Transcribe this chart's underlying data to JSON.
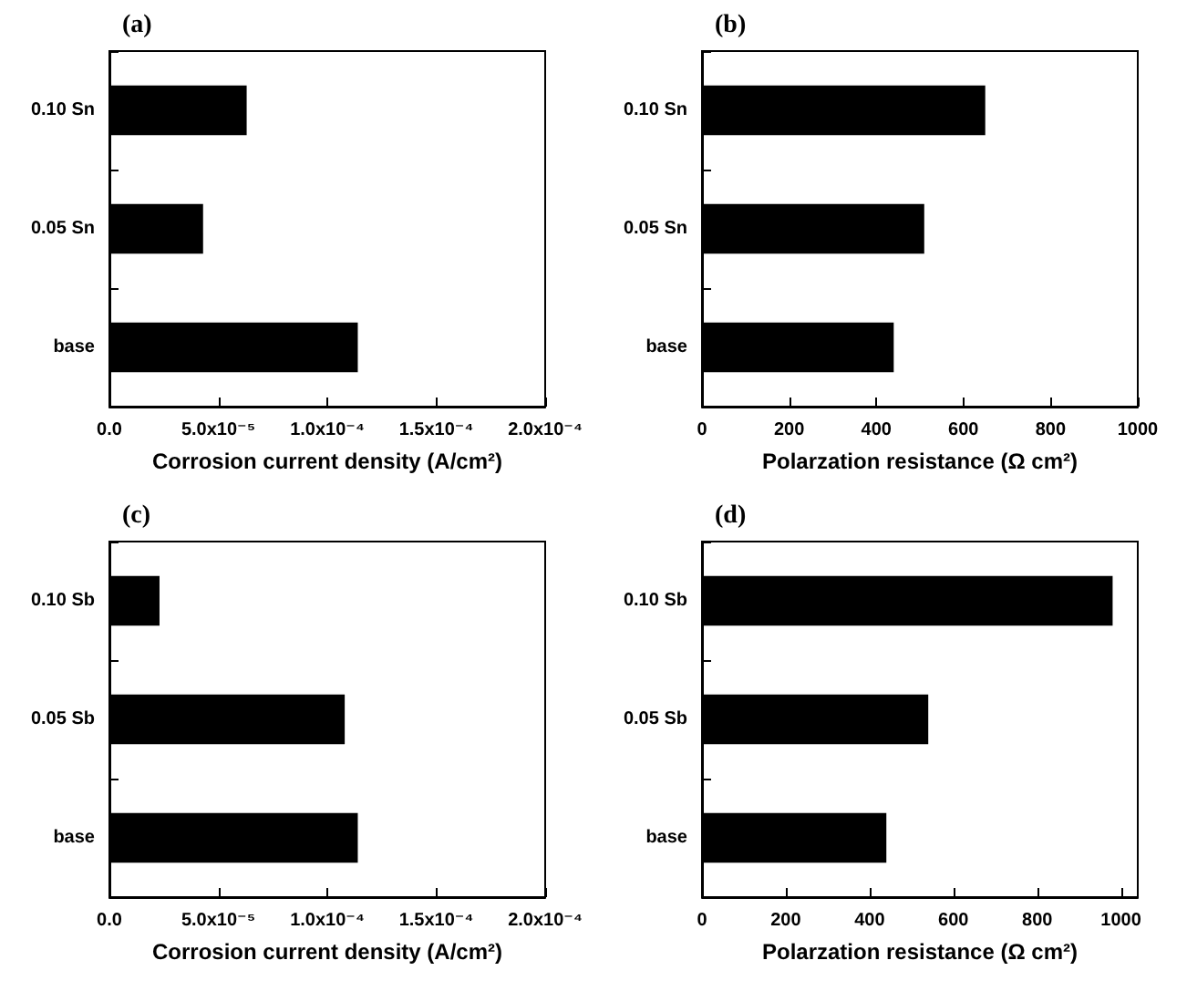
{
  "chart_data": [
    {
      "type": "bar",
      "orientation": "horizontal",
      "title": "(a)",
      "xlabel": "Corrosion current density (A/cm²)",
      "categories": [
        "0.10 Sn",
        "0.05 Sn",
        "base"
      ],
      "values": [
        6.3e-05,
        4.3e-05,
        0.000114
      ],
      "color": "#000000",
      "xlim": [
        0,
        0.0002
      ],
      "xticks": [
        {
          "value": 0,
          "label": "0.0"
        },
        {
          "value": 5e-05,
          "label": "5.0x10⁻⁵"
        },
        {
          "value": 0.0001,
          "label": "1.0x10⁻⁴"
        },
        {
          "value": 0.00015,
          "label": "1.5x10⁻⁴"
        },
        {
          "value": 0.0002,
          "label": "2.0x10⁻⁴"
        }
      ]
    },
    {
      "type": "bar",
      "orientation": "horizontal",
      "title": "(b)",
      "xlabel": "Polarzation resistance (Ω cm²)",
      "categories": [
        "0.10 Sn",
        "0.05 Sn",
        "base"
      ],
      "values": [
        650,
        510,
        440
      ],
      "color": "#000000",
      "xlim": [
        0,
        1000
      ],
      "xticks": [
        0,
        200,
        400,
        600,
        800,
        1000
      ]
    },
    {
      "type": "bar",
      "orientation": "horizontal",
      "title": "(c)",
      "xlabel": "Corrosion current density (A/cm²)",
      "categories": [
        "0.10 Sb",
        "0.05 Sb",
        "base"
      ],
      "values": [
        2.3e-05,
        0.000108,
        0.000114
      ],
      "color": "#000000",
      "xlim": [
        0,
        0.0002
      ],
      "xticks": [
        {
          "value": 0,
          "label": "0.0"
        },
        {
          "value": 5e-05,
          "label": "5.0x10⁻⁵"
        },
        {
          "value": 0.0001,
          "label": "1.0x10⁻⁴"
        },
        {
          "value": 0.00015,
          "label": "1.5x10⁻⁴"
        },
        {
          "value": 0.0002,
          "label": "2.0x10⁻⁴"
        }
      ]
    },
    {
      "type": "bar",
      "orientation": "horizontal",
      "title": "(d)",
      "xlabel": "Polarzation resistance (Ω cm²)",
      "categories": [
        "0.10 Sb",
        "0.05 Sb",
        "base"
      ],
      "values": [
        980,
        540,
        440
      ],
      "color": "#000000",
      "xlim": [
        0,
        1040
      ],
      "xticks": [
        0,
        200,
        400,
        600,
        800,
        1000
      ]
    }
  ]
}
